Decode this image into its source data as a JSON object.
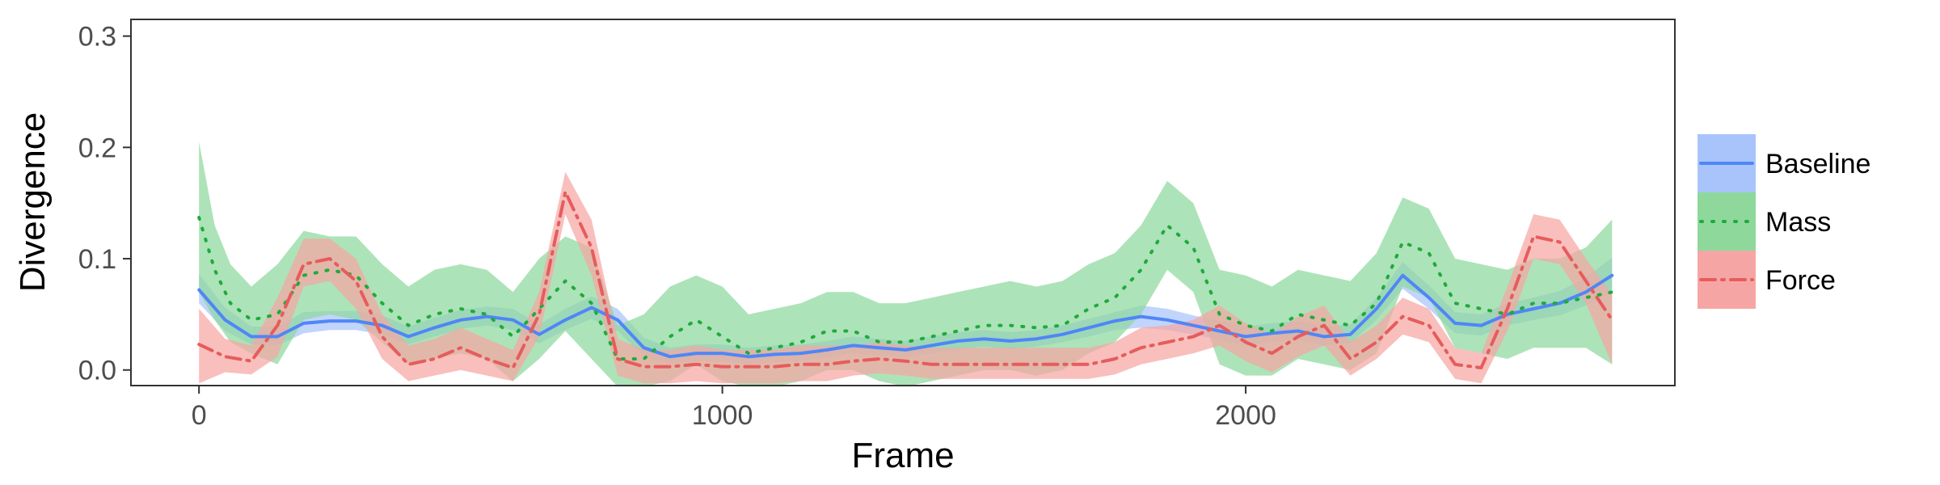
{
  "chart_data": {
    "type": "line",
    "xlabel": "Frame",
    "ylabel": "Divergence",
    "xlim": [
      -130,
      2820
    ],
    "ylim": [
      -0.014,
      0.315
    ],
    "xticks": [
      0,
      1000,
      2000
    ],
    "xtick_labels": [
      "0",
      "1000",
      "2000"
    ],
    "yticks": [
      0.0,
      0.1,
      0.2,
      0.3
    ],
    "ytick_labels": [
      "0.0",
      "0.1",
      "0.2",
      "0.3"
    ],
    "grid": false,
    "legend_position": "right",
    "bands": "confidence ribbon around each series",
    "series": [
      {
        "name": "Baseline",
        "color": "#4f86f7",
        "fill": "#a9c4fb",
        "dash": "solid",
        "x": [
          0,
          50,
          100,
          150,
          200,
          250,
          300,
          350,
          400,
          450,
          500,
          550,
          600,
          650,
          700,
          750,
          800,
          850,
          900,
          950,
          1000,
          1050,
          1100,
          1150,
          1200,
          1250,
          1300,
          1350,
          1400,
          1450,
          1500,
          1550,
          1600,
          1650,
          1700,
          1750,
          1800,
          1850,
          1900,
          1950,
          2000,
          2050,
          2100,
          2150,
          2200,
          2250,
          2300,
          2350,
          2400,
          2450,
          2500,
          2550,
          2600,
          2650,
          2700
        ],
        "y": [
          0.072,
          0.045,
          0.03,
          0.03,
          0.042,
          0.044,
          0.044,
          0.04,
          0.03,
          0.038,
          0.045,
          0.048,
          0.045,
          0.032,
          0.045,
          0.056,
          0.045,
          0.02,
          0.012,
          0.015,
          0.015,
          0.012,
          0.014,
          0.015,
          0.018,
          0.022,
          0.02,
          0.018,
          0.022,
          0.026,
          0.028,
          0.026,
          0.028,
          0.032,
          0.038,
          0.044,
          0.048,
          0.045,
          0.04,
          0.035,
          0.03,
          0.033,
          0.035,
          0.03,
          0.032,
          0.055,
          0.085,
          0.065,
          0.042,
          0.04,
          0.05,
          0.055,
          0.06,
          0.07,
          0.085
        ],
        "lower": [
          0.06,
          0.035,
          0.023,
          0.022,
          0.033,
          0.036,
          0.036,
          0.032,
          0.023,
          0.03,
          0.037,
          0.04,
          0.036,
          0.024,
          0.036,
          0.046,
          0.035,
          0.012,
          0.005,
          0.008,
          0.008,
          0.005,
          0.007,
          0.008,
          0.011,
          0.015,
          0.013,
          0.011,
          0.015,
          0.019,
          0.021,
          0.019,
          0.021,
          0.025,
          0.03,
          0.036,
          0.038,
          0.036,
          0.032,
          0.027,
          0.022,
          0.025,
          0.027,
          0.022,
          0.024,
          0.045,
          0.073,
          0.055,
          0.033,
          0.031,
          0.04,
          0.045,
          0.049,
          0.058,
          0.07
        ],
        "upper": [
          0.086,
          0.056,
          0.039,
          0.039,
          0.052,
          0.053,
          0.053,
          0.049,
          0.039,
          0.047,
          0.054,
          0.057,
          0.055,
          0.041,
          0.055,
          0.066,
          0.055,
          0.029,
          0.02,
          0.023,
          0.023,
          0.02,
          0.022,
          0.023,
          0.026,
          0.03,
          0.028,
          0.026,
          0.03,
          0.034,
          0.036,
          0.034,
          0.036,
          0.04,
          0.046,
          0.052,
          0.058,
          0.055,
          0.049,
          0.044,
          0.039,
          0.042,
          0.044,
          0.039,
          0.041,
          0.065,
          0.097,
          0.076,
          0.052,
          0.05,
          0.06,
          0.065,
          0.071,
          0.083,
          0.101
        ]
      },
      {
        "name": "Mass",
        "color": "#1faa3c",
        "fill": "#8ed89c",
        "dash": "dotted",
        "x": [
          0,
          30,
          60,
          100,
          150,
          200,
          250,
          300,
          350,
          400,
          450,
          500,
          550,
          600,
          650,
          700,
          750,
          800,
          850,
          900,
          950,
          1000,
          1050,
          1100,
          1150,
          1200,
          1250,
          1300,
          1350,
          1400,
          1450,
          1500,
          1550,
          1600,
          1650,
          1700,
          1750,
          1800,
          1850,
          1900,
          1950,
          2000,
          2050,
          2100,
          2150,
          2200,
          2250,
          2300,
          2350,
          2400,
          2450,
          2500,
          2550,
          2600,
          2650,
          2700
        ],
        "y": [
          0.137,
          0.09,
          0.06,
          0.045,
          0.05,
          0.085,
          0.09,
          0.085,
          0.06,
          0.04,
          0.05,
          0.055,
          0.05,
          0.03,
          0.055,
          0.08,
          0.06,
          0.01,
          0.01,
          0.03,
          0.045,
          0.03,
          0.015,
          0.02,
          0.025,
          0.035,
          0.035,
          0.025,
          0.025,
          0.03,
          0.035,
          0.04,
          0.04,
          0.038,
          0.04,
          0.055,
          0.065,
          0.09,
          0.13,
          0.11,
          0.05,
          0.04,
          0.035,
          0.05,
          0.045,
          0.04,
          0.06,
          0.115,
          0.105,
          0.06,
          0.055,
          0.05,
          0.06,
          0.06,
          0.065,
          0.07
        ],
        "lower": [
          0.07,
          0.045,
          0.025,
          0.015,
          0.005,
          0.045,
          0.05,
          0.045,
          0.025,
          0.005,
          0.01,
          0.015,
          0.01,
          -0.01,
          0.01,
          0.035,
          0.01,
          -0.015,
          -0.015,
          -0.01,
          0.005,
          -0.01,
          -0.015,
          -0.015,
          -0.01,
          0.0,
          0.0,
          -0.01,
          -0.015,
          -0.01,
          -0.005,
          0.0,
          0.0,
          -0.005,
          0.0,
          0.015,
          0.025,
          0.05,
          0.09,
          0.07,
          0.005,
          -0.005,
          -0.005,
          0.01,
          0.005,
          0.0,
          0.015,
          0.075,
          0.065,
          0.02,
          0.015,
          0.01,
          0.02,
          0.02,
          0.02,
          0.005
        ],
        "upper": [
          0.205,
          0.13,
          0.095,
          0.075,
          0.095,
          0.125,
          0.12,
          0.12,
          0.095,
          0.075,
          0.09,
          0.095,
          0.09,
          0.07,
          0.1,
          0.12,
          0.11,
          0.04,
          0.05,
          0.075,
          0.085,
          0.075,
          0.05,
          0.055,
          0.06,
          0.07,
          0.07,
          0.06,
          0.06,
          0.065,
          0.07,
          0.075,
          0.08,
          0.075,
          0.08,
          0.095,
          0.105,
          0.13,
          0.17,
          0.15,
          0.09,
          0.085,
          0.075,
          0.09,
          0.085,
          0.08,
          0.105,
          0.155,
          0.145,
          0.1,
          0.095,
          0.09,
          0.1,
          0.1,
          0.11,
          0.135
        ]
      },
      {
        "name": "Force",
        "color": "#e65c5c",
        "fill": "#f5a6a4",
        "dash": "dashdot",
        "x": [
          0,
          50,
          100,
          150,
          200,
          250,
          300,
          350,
          400,
          450,
          500,
          550,
          600,
          650,
          700,
          750,
          800,
          850,
          900,
          950,
          1000,
          1050,
          1100,
          1150,
          1200,
          1250,
          1300,
          1350,
          1400,
          1450,
          1500,
          1550,
          1600,
          1650,
          1700,
          1750,
          1800,
          1850,
          1900,
          1950,
          2000,
          2050,
          2100,
          2150,
          2200,
          2250,
          2300,
          2350,
          2400,
          2450,
          2500,
          2550,
          2600,
          2650,
          2700
        ],
        "y": [
          0.023,
          0.012,
          0.008,
          0.04,
          0.095,
          0.1,
          0.08,
          0.03,
          0.005,
          0.01,
          0.02,
          0.01,
          0.002,
          0.05,
          0.16,
          0.11,
          0.01,
          0.003,
          0.003,
          0.005,
          0.003,
          0.003,
          0.003,
          0.005,
          0.005,
          0.008,
          0.01,
          0.008,
          0.005,
          0.005,
          0.005,
          0.005,
          0.005,
          0.005,
          0.005,
          0.01,
          0.02,
          0.025,
          0.03,
          0.04,
          0.025,
          0.015,
          0.03,
          0.04,
          0.01,
          0.025,
          0.048,
          0.04,
          0.005,
          0.002,
          0.055,
          0.12,
          0.115,
          0.08,
          0.045
        ],
        "lower": [
          -0.012,
          -0.002,
          -0.004,
          0.012,
          0.075,
          0.08,
          0.055,
          0.01,
          -0.01,
          -0.005,
          0.0,
          -0.005,
          -0.01,
          0.03,
          0.14,
          0.085,
          -0.005,
          -0.012,
          -0.012,
          -0.01,
          -0.012,
          -0.012,
          -0.012,
          -0.01,
          -0.01,
          -0.005,
          -0.003,
          -0.005,
          -0.008,
          -0.008,
          -0.008,
          -0.008,
          -0.008,
          -0.008,
          -0.008,
          -0.004,
          0.005,
          0.01,
          0.015,
          0.022,
          0.008,
          -0.002,
          0.012,
          0.022,
          -0.005,
          0.01,
          0.032,
          0.025,
          -0.008,
          -0.012,
          0.035,
          0.1,
          0.095,
          0.06,
          0.005
        ],
        "upper": [
          0.055,
          0.028,
          0.022,
          0.065,
          0.118,
          0.118,
          0.1,
          0.05,
          0.022,
          0.028,
          0.038,
          0.028,
          0.018,
          0.07,
          0.178,
          0.135,
          0.028,
          0.018,
          0.018,
          0.022,
          0.018,
          0.018,
          0.018,
          0.022,
          0.022,
          0.022,
          0.025,
          0.022,
          0.02,
          0.02,
          0.02,
          0.02,
          0.02,
          0.02,
          0.02,
          0.025,
          0.038,
          0.04,
          0.045,
          0.058,
          0.042,
          0.032,
          0.048,
          0.058,
          0.025,
          0.04,
          0.065,
          0.055,
          0.02,
          0.015,
          0.075,
          0.14,
          0.135,
          0.1,
          0.068
        ]
      }
    ]
  }
}
